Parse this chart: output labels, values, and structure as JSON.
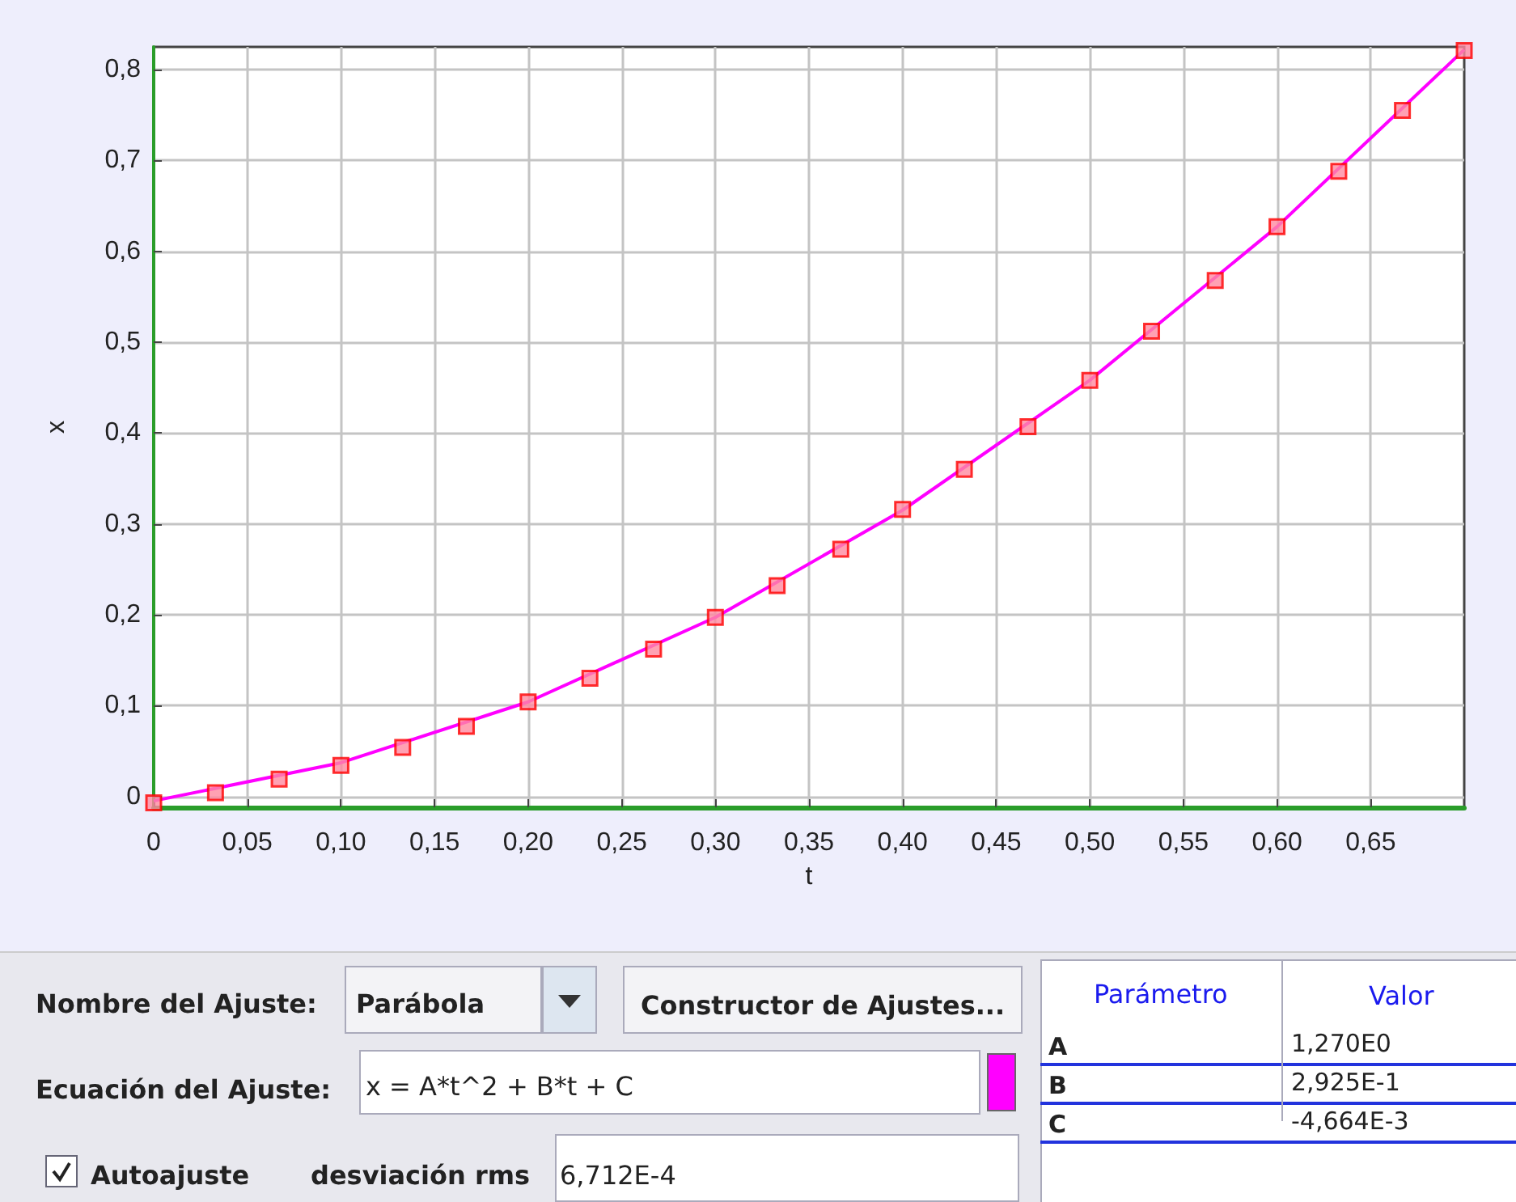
{
  "chart_data": {
    "type": "scatter",
    "xlabel": "t",
    "ylabel": "x",
    "x": [
      0,
      0.033,
      0.067,
      0.1,
      0.133,
      0.167,
      0.2,
      0.233,
      0.267,
      0.3,
      0.333,
      0.367,
      0.4,
      0.433,
      0.467,
      0.5,
      0.533,
      0.567,
      0.6,
      0.633,
      0.667,
      0.7
    ],
    "series": [
      {
        "type": "line",
        "color": "#ff00ff",
        "marker": "none",
        "x": [
          0,
          0.1,
          0.2,
          0.3,
          0.4,
          0.5,
          0.6,
          0.7
        ],
        "values": [
          -0.005,
          0.037,
          0.104,
          0.197,
          0.315,
          0.458,
          0.627,
          0.822
        ]
      },
      {
        "color": "#ff0000",
        "marker": "square",
        "values": [
          -0.007,
          0.004,
          0.019,
          0.034,
          0.054,
          0.077,
          0.104,
          0.13,
          0.162,
          0.197,
          0.232,
          0.272,
          0.316,
          0.36,
          0.407,
          0.458,
          0.512,
          0.568,
          0.627,
          0.688,
          0.755,
          0.821
        ]
      }
    ],
    "xlim": [
      0,
      0.7
    ],
    "ylim": [
      -0.012,
      0.825
    ],
    "xticks": [
      0,
      {
        "value": 0.05,
        "label": "0,05"
      },
      {
        "value": 0.1,
        "label": "0,10"
      },
      {
        "value": 0.15,
        "label": "0,15"
      },
      {
        "value": 0.2,
        "label": "0,20"
      },
      {
        "value": 0.25,
        "label": "0,25"
      },
      {
        "value": 0.3,
        "label": "0,30"
      },
      {
        "value": 0.35,
        "label": "0,35"
      },
      {
        "value": 0.4,
        "label": "0,40"
      },
      {
        "value": 0.45,
        "label": "0,45"
      },
      {
        "value": 0.5,
        "label": "0,50"
      },
      {
        "value": 0.55,
        "label": "0,55"
      },
      {
        "value": 0.6,
        "label": "0,60"
      },
      {
        "value": 0.65,
        "label": "0,65"
      }
    ],
    "yticks": [
      0,
      {
        "value": 0.1,
        "label": "0,1"
      },
      {
        "value": 0.2,
        "label": "0,2"
      },
      {
        "value": 0.3,
        "label": "0,3"
      },
      {
        "value": 0.4,
        "label": "0,4"
      },
      {
        "value": 0.5,
        "label": "0,5"
      },
      {
        "value": 0.6,
        "label": "0,6"
      },
      {
        "value": 0.7,
        "label": "0,7"
      },
      {
        "value": 0.8,
        "label": "0,8"
      }
    ],
    "grid": true,
    "annotations": [
      "Nombre del Ajuste:",
      "Parábola",
      "Constructor de Ajustes...",
      "Ecuación del Ajuste:",
      "x = A*t^2 + B*t + C",
      "Autoajuste",
      "desviación rms",
      "6,712E-4",
      "Parámetro",
      "Valor",
      "A",
      "1,270E0",
      "B",
      "2,925E-1",
      "C",
      "-4,664E-3"
    ]
  }
}
